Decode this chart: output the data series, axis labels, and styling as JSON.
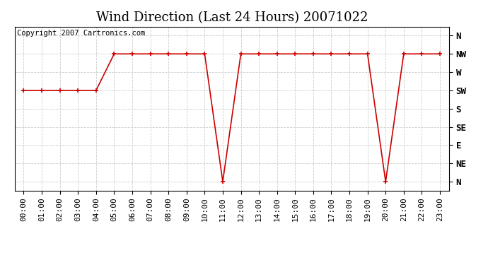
{
  "title": "Wind Direction (Last 24 Hours) 20071022",
  "copyright": "Copyright 2007 Cartronics.com",
  "background_color": "#ffffff",
  "line_color": "#cc0000",
  "marker_color": "#cc0000",
  "grid_color": "#cccccc",
  "hours": [
    0,
    1,
    2,
    3,
    4,
    5,
    6,
    7,
    8,
    9,
    10,
    11,
    12,
    13,
    14,
    15,
    16,
    17,
    18,
    19,
    20,
    21,
    22,
    23
  ],
  "directions": [
    "SW",
    "SW",
    "SW",
    "SW",
    "SW",
    "NW",
    "NW",
    "NW",
    "NW",
    "NW",
    "NW",
    "N",
    "NW",
    "NW",
    "NW",
    "NW",
    "NW",
    "NW",
    "NW",
    "NW",
    "N",
    "NW",
    "NW",
    "NW"
  ],
  "y_values": [
    5,
    5,
    5,
    5,
    5,
    7,
    7,
    7,
    7,
    7,
    7,
    0,
    7,
    7,
    7,
    7,
    7,
    7,
    7,
    7,
    0,
    7,
    7,
    7
  ],
  "ytick_positions": [
    0,
    1,
    2,
    3,
    4,
    5,
    6,
    7,
    8
  ],
  "ytick_labels": [
    "N",
    "NE",
    "E",
    "SE",
    "S",
    "SW",
    "W",
    "NW",
    "N"
  ],
  "xlim": [
    -0.5,
    23.5
  ],
  "ylim": [
    -0.5,
    8.5
  ],
  "title_fontsize": 13,
  "tick_fontsize": 8,
  "copyright_fontsize": 7.5,
  "grid_color_alpha": 0.8
}
